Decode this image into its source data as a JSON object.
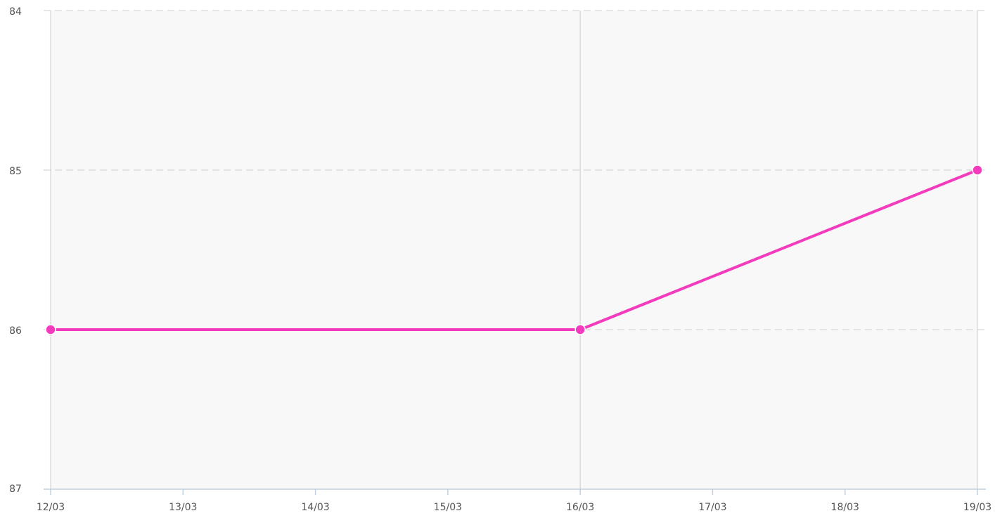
{
  "chart_data": {
    "type": "line",
    "categories": [
      "12/03",
      "13/03",
      "14/03",
      "15/03",
      "16/03",
      "17/03",
      "18/03",
      "19/03"
    ],
    "series": [
      {
        "color": "#f23bbd",
        "x": [
          "12/03",
          "16/03",
          "19/03"
        ],
        "values": [
          86,
          86,
          85
        ]
      }
    ],
    "ylim": [
      87,
      84
    ],
    "yticks": [
      87,
      86,
      85,
      84
    ],
    "grid": true
  }
}
